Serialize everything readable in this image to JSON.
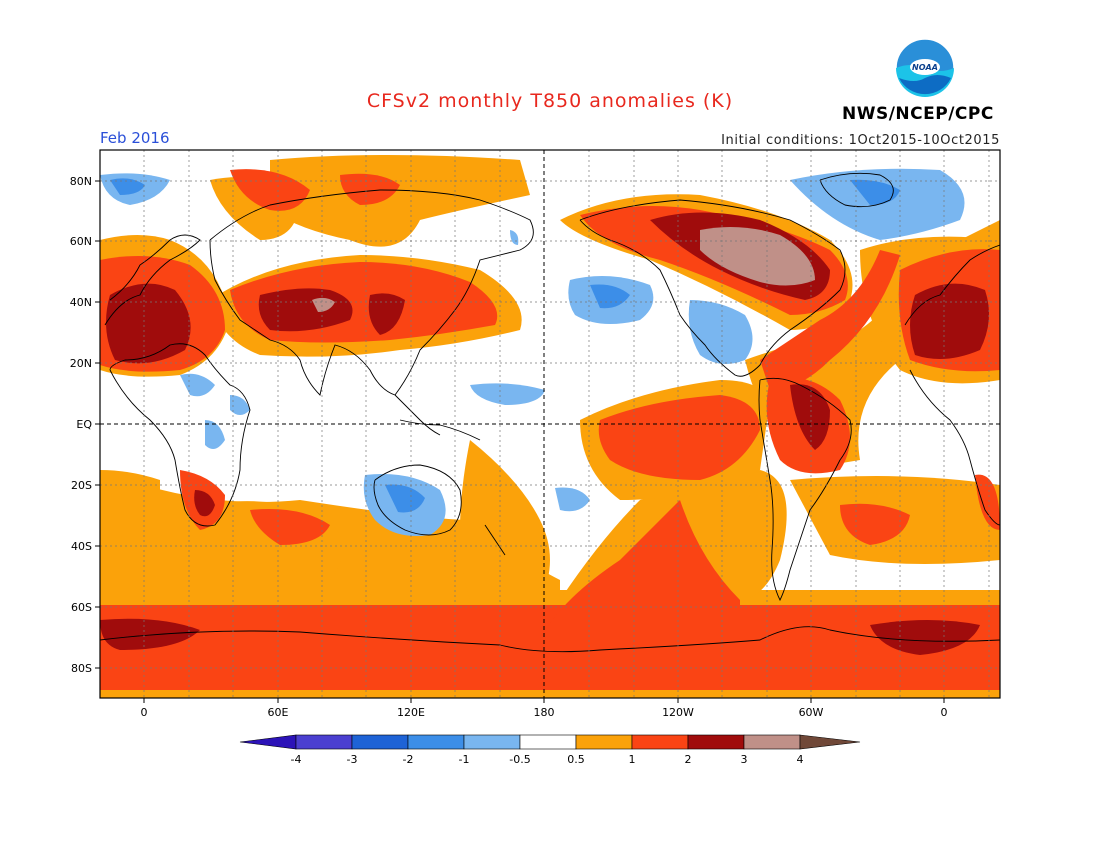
{
  "header": {
    "title": "CFSv2 monthly T850 anomalies (K)",
    "agency": "NWS/NCEP/CPC",
    "month": "Feb 2016",
    "initial_conditions": "Initial conditions: 1Oct2015-10Oct2015"
  },
  "logo": {
    "text": "NOAA",
    "icon": "noaa-logo-icon"
  },
  "map": {
    "lat_labels": [
      "80N",
      "60N",
      "40N",
      "20N",
      "EQ",
      "20S",
      "40S",
      "60S",
      "80S"
    ],
    "lon_labels": [
      "0",
      "60E",
      "120E",
      "180",
      "120W",
      "60W",
      "0"
    ]
  },
  "colorbar": {
    "labels": [
      "-4",
      "-3",
      "-2",
      "-1",
      "-0.5",
      "0.5",
      "1",
      "2",
      "3",
      "4"
    ],
    "colors": [
      "#2c13b8",
      "#4b3fd0",
      "#1e63d6",
      "#3c8ee8",
      "#79b6f0",
      "#ffffff",
      "#fba20a",
      "#fa4414",
      "#a00c0c",
      "#c09088",
      "#704838"
    ]
  },
  "colors": {
    "warm1": "#fba20a",
    "warm2": "#fa4414",
    "warm3": "#a00c0c",
    "warm4": "#c09088",
    "cool1": "#79b6f0",
    "cool2": "#3c8ee8",
    "title": "#e8281e",
    "month": "#2a4fd8"
  }
}
